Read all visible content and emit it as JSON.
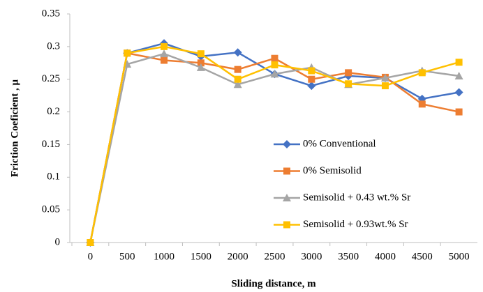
{
  "chart_data": {
    "type": "line",
    "x_label": "Sliding distance, m",
    "y_label": "Friction Coeficient , μ",
    "categories": [
      0,
      500,
      1000,
      1500,
      2000,
      2500,
      3000,
      3500,
      4000,
      4500,
      5000
    ],
    "series": [
      {
        "name": "0% Conventional",
        "color": "#4472c4",
        "marker": "diamond",
        "values": [
          0,
          0.29,
          0.305,
          0.285,
          0.291,
          0.258,
          0.24,
          0.255,
          0.252,
          0.22,
          0.23
        ]
      },
      {
        "name": "0% Semisolid",
        "color": "#ed7d31",
        "marker": "square",
        "values": [
          0,
          0.29,
          0.279,
          0.275,
          0.265,
          0.282,
          0.25,
          0.26,
          0.253,
          0.212,
          0.2
        ]
      },
      {
        "name": "Semisolid + 0.43 wt.% Sr",
        "color": "#a5a5a5",
        "marker": "triangle",
        "values": [
          0,
          0.273,
          0.289,
          0.268,
          0.242,
          0.258,
          0.268,
          0.242,
          0.252,
          0.263,
          0.255
        ]
      },
      {
        "name": "Semisolid + 0.93wt.% Sr",
        "color": "#ffc000",
        "marker": "square",
        "values": [
          0,
          0.29,
          0.3,
          0.289,
          0.25,
          0.272,
          0.263,
          0.243,
          0.24,
          0.26,
          0.276
        ]
      }
    ],
    "ylim": [
      0,
      0.35
    ],
    "yticks": [
      0,
      0.05,
      0.1,
      0.15,
      0.2,
      0.25,
      0.3,
      0.35
    ],
    "grid": false,
    "legend": "center-right"
  }
}
